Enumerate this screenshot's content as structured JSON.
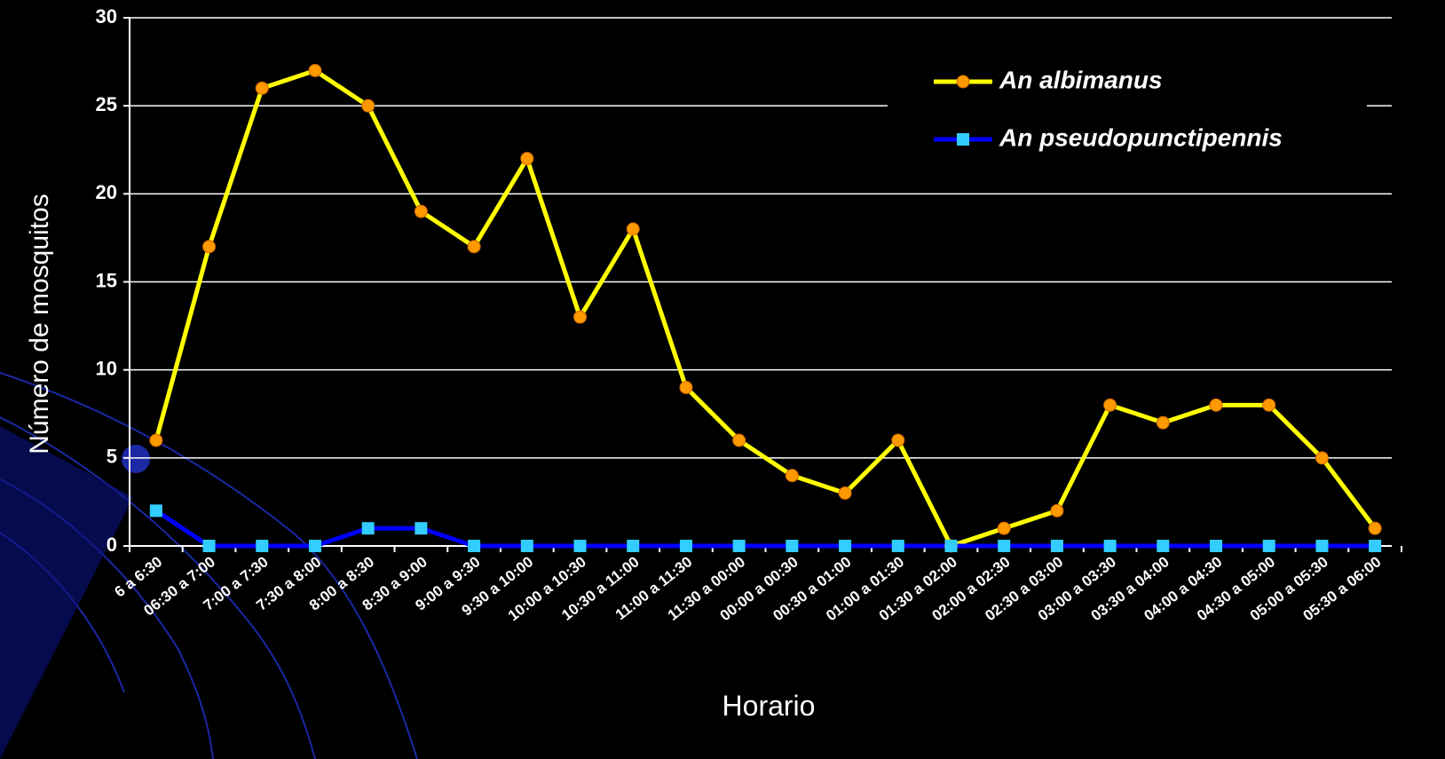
{
  "chart_data": {
    "type": "line",
    "x_label": "Horario",
    "y_label": "Número de mosquitos",
    "categories": [
      "6 a 6:30",
      "06:30 a 7:00",
      "7:00 a 7:30",
      "7:30 a 8:00",
      "8:00 a 8:30",
      "8:30 a 9:00",
      "9:00 a 9:30",
      "9:30 a 10:00",
      "10:00 a 10:30",
      "10:30 a 11:00",
      "11:00 a 11:30",
      "11:30 a 00:00",
      "00:00 a 00:30",
      "00:30 a 01:00",
      "01:00 a 01:30",
      "01:30 a 02:00",
      "02:00 a 02:30",
      "02:30 a 03:00",
      "03:00 a 03:30",
      "03:30 a 04:00",
      "04:00 a 04:30",
      "04:30 a 05:00",
      "05:00 a 05:30",
      "05:30 a 06:00"
    ],
    "series": [
      {
        "name": "An albimanus",
        "color": "#ffff00",
        "marker": "circle",
        "marker_color": "#ff9900",
        "values": [
          6,
          17,
          26,
          27,
          25,
          19,
          17,
          22,
          13,
          18,
          9,
          6,
          4,
          3,
          6,
          0,
          1,
          2,
          8,
          7,
          8,
          8,
          5,
          1
        ]
      },
      {
        "name": "An pseudopunctipennis",
        "color": "#0000ff",
        "marker": "square",
        "marker_color": "#33ccff",
        "values": [
          2,
          0,
          0,
          0,
          1,
          1,
          0,
          0,
          0,
          0,
          0,
          0,
          0,
          0,
          0,
          0,
          0,
          0,
          0,
          0,
          0,
          0,
          0,
          0
        ]
      }
    ],
    "ylim": [
      0,
      30
    ],
    "yticks": [
      0,
      5,
      10,
      15,
      20,
      25,
      30
    ],
    "grid": true,
    "legend": "top-right"
  }
}
